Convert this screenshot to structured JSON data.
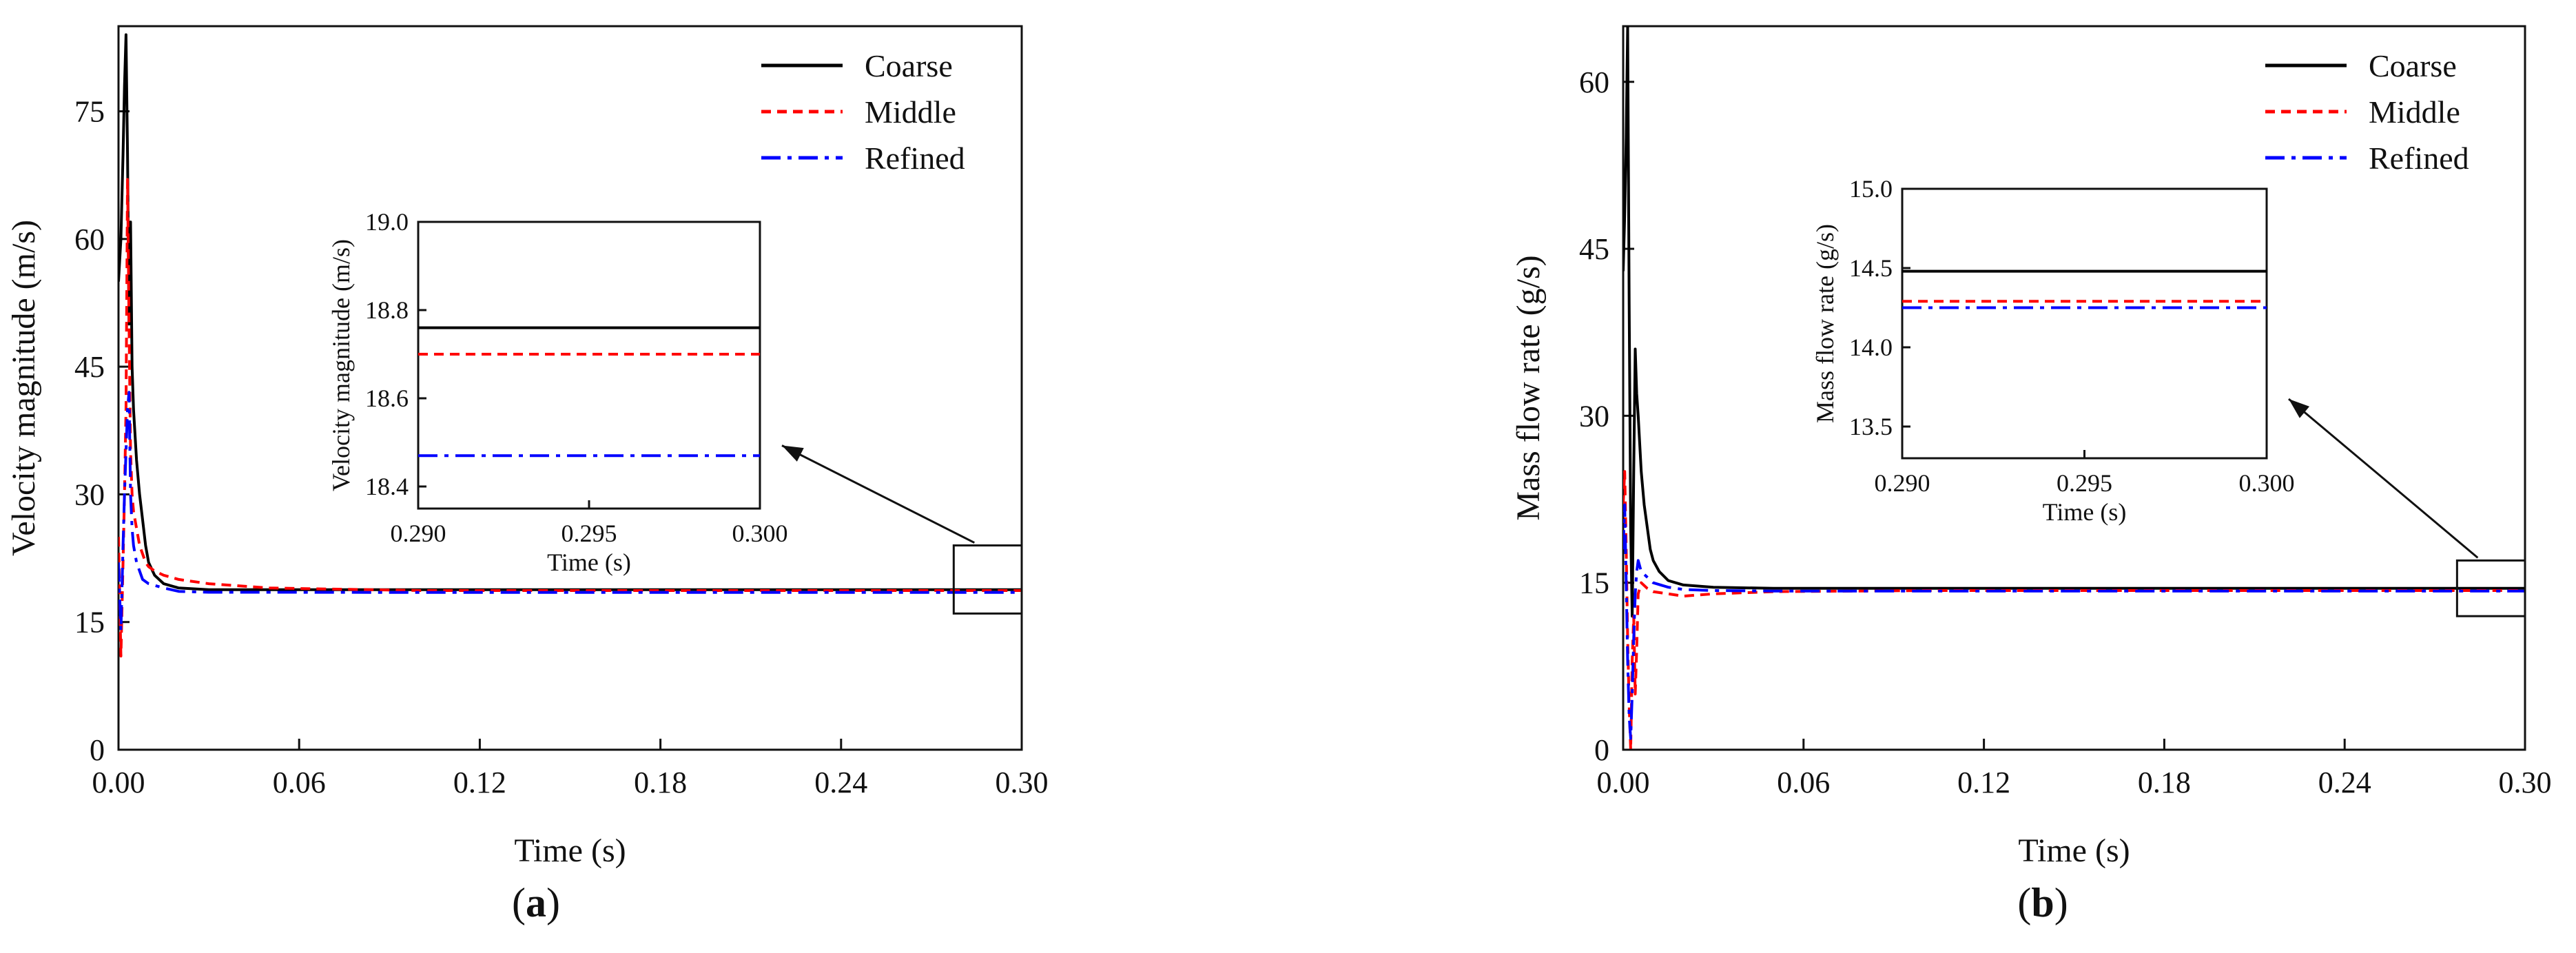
{
  "chart_data": [
    {
      "type": "line",
      "panel_label": "a",
      "xlabel": "Time (s)",
      "ylabel": "Velocity magnitude (m/s)",
      "xlim": [
        0,
        0.3
      ],
      "ylim": [
        0,
        85
      ],
      "xticks": [
        "0.00",
        "0.06",
        "0.12",
        "0.18",
        "0.24",
        "0.30"
      ],
      "yticks": [
        "0",
        "15",
        "30",
        "45",
        "60",
        "75"
      ],
      "legend": [
        "Coarse",
        "Middle",
        "Refined"
      ],
      "colors": {
        "Coarse": "#000000",
        "Middle": "#ff0000",
        "Refined": "#0000ff"
      },
      "series": [
        {
          "name": "Coarse",
          "style": "solid",
          "color": "#000000",
          "x": [
            0,
            0.0008,
            0.0015,
            0.002,
            0.0025,
            0.003,
            0.0035,
            0.004,
            0.0045,
            0.005,
            0.006,
            0.007,
            0.008,
            0.009,
            0.01,
            0.012,
            0.015,
            0.02,
            0.03,
            0.05,
            0.1,
            0.2,
            0.3
          ],
          "y": [
            55,
            60,
            70,
            78,
            84,
            70,
            50,
            62,
            45,
            40,
            34,
            30,
            27,
            24,
            22,
            20.5,
            19.5,
            19,
            18.8,
            18.8,
            18.8,
            18.8,
            18.8
          ]
        },
        {
          "name": "Middle",
          "style": "dashed",
          "color": "#ff0000",
          "x": [
            0,
            0.0008,
            0.0015,
            0.002,
            0.0025,
            0.003,
            0.0035,
            0.004,
            0.0045,
            0.005,
            0.006,
            0.007,
            0.008,
            0.009,
            0.01,
            0.012,
            0.015,
            0.02,
            0.03,
            0.05,
            0.1,
            0.2,
            0.3
          ],
          "y": [
            25,
            11,
            22,
            30,
            40,
            67,
            50,
            35,
            30,
            28,
            26,
            24,
            23,
            22,
            21.5,
            21,
            20.5,
            20,
            19.5,
            19,
            18.7,
            18.7,
            18.7
          ]
        },
        {
          "name": "Refined",
          "style": "dashdot",
          "color": "#0000ff",
          "x": [
            0,
            0.0008,
            0.0015,
            0.002,
            0.0025,
            0.003,
            0.0035,
            0.004,
            0.0045,
            0.005,
            0.006,
            0.007,
            0.008,
            0.01,
            0.015,
            0.02,
            0.03,
            0.05,
            0.1,
            0.2,
            0.3
          ],
          "y": [
            22,
            14,
            24,
            30,
            35,
            40,
            42,
            30,
            26,
            24,
            22,
            21,
            20,
            19.5,
            19,
            18.6,
            18.5,
            18.5,
            18.47,
            18.47,
            18.47
          ]
        }
      ],
      "annotation_box": {
        "xlim": [
          0.29,
          0.3
        ],
        "ylim": [
          16,
          24
        ]
      },
      "inset": {
        "xlabel": "Time (s)",
        "ylabel": "Velocity magnitude (m/s)",
        "xlim": [
          0.29,
          0.3
        ],
        "ylim": [
          18.35,
          19.0
        ],
        "xticks": [
          "0.290",
          "0.295",
          "0.300"
        ],
        "yticks": [
          "18.4",
          "18.6",
          "18.8",
          "19.0"
        ],
        "values": {
          "Coarse": 18.76,
          "Middle": 18.7,
          "Refined": 18.47
        }
      }
    },
    {
      "type": "line",
      "panel_label": "b",
      "xlabel": "Time (s)",
      "ylabel": "Mass flow rate (g/s)",
      "xlim": [
        0,
        0.3
      ],
      "ylim": [
        0,
        65
      ],
      "xticks": [
        "0.00",
        "0.06",
        "0.12",
        "0.18",
        "0.24",
        "0.30"
      ],
      "yticks": [
        "0",
        "15",
        "30",
        "45",
        "60"
      ],
      "legend": [
        "Coarse",
        "Middle",
        "Refined"
      ],
      "colors": {
        "Coarse": "#000000",
        "Middle": "#ff0000",
        "Refined": "#0000ff"
      },
      "series": [
        {
          "name": "Coarse",
          "style": "solid",
          "color": "#000000",
          "x": [
            0,
            0.0005,
            0.001,
            0.0015,
            0.002,
            0.0025,
            0.003,
            0.0035,
            0.004,
            0.0045,
            0.005,
            0.006,
            0.007,
            0.008,
            0.009,
            0.01,
            0.012,
            0.015,
            0.02,
            0.03,
            0.05,
            0.1,
            0.2,
            0.3
          ],
          "y": [
            43,
            48,
            55,
            65,
            40,
            20,
            12,
            25,
            36,
            32,
            30,
            25,
            22,
            20,
            18,
            17,
            16,
            15.2,
            14.8,
            14.6,
            14.5,
            14.5,
            14.5,
            14.5
          ]
        },
        {
          "name": "Middle",
          "style": "dashed",
          "color": "#ff0000",
          "x": [
            0,
            0.0005,
            0.001,
            0.0015,
            0.002,
            0.0025,
            0.003,
            0.0035,
            0.004,
            0.0045,
            0.005,
            0.006,
            0.008,
            0.01,
            0.015,
            0.02,
            0.03,
            0.05,
            0.1,
            0.2,
            0.3
          ],
          "y": [
            22,
            25,
            18,
            10,
            4,
            0,
            8,
            12,
            5,
            9,
            14,
            15,
            14.5,
            14.2,
            14,
            13.8,
            14,
            14.2,
            14.3,
            14.3,
            14.3
          ]
        },
        {
          "name": "Refined",
          "style": "dashdot",
          "color": "#0000ff",
          "x": [
            0,
            0.0005,
            0.001,
            0.0015,
            0.002,
            0.0025,
            0.003,
            0.0035,
            0.004,
            0.0045,
            0.005,
            0.006,
            0.008,
            0.01,
            0.015,
            0.02,
            0.03,
            0.05,
            0.1,
            0.2,
            0.3
          ],
          "y": [
            18,
            22,
            15,
            8,
            3,
            1,
            5,
            10,
            14,
            16,
            17,
            16,
            15.5,
            15,
            14.6,
            14.4,
            14.3,
            14.25,
            14.25,
            14.25,
            14.25
          ]
        }
      ],
      "annotation_box": {
        "xlim": [
          0.29,
          0.3
        ],
        "ylim": [
          12,
          17
        ]
      },
      "inset": {
        "xlabel": "Time (s)",
        "ylabel": "Mass flow rate (g/s)",
        "xlim": [
          0.29,
          0.3
        ],
        "ylim": [
          13.3,
          15.0
        ],
        "xticks": [
          "0.290",
          "0.295",
          "0.300"
        ],
        "yticks": [
          "13.5",
          "14.0",
          "14.5",
          "15.0"
        ],
        "values": {
          "Coarse": 14.48,
          "Middle": 14.29,
          "Refined": 14.25
        }
      }
    }
  ]
}
